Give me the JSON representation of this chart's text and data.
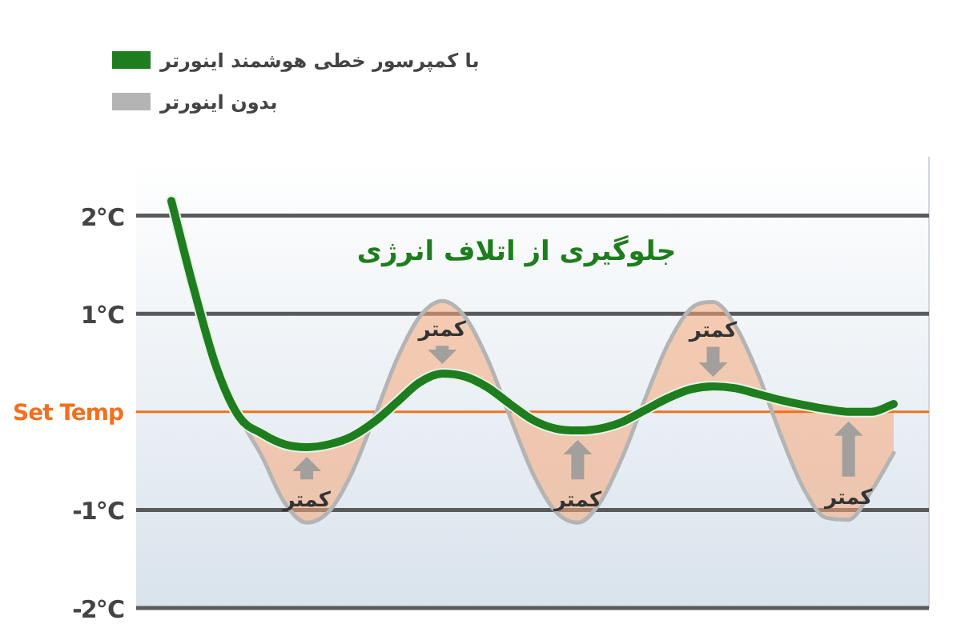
{
  "chart_data": {
    "type": "line",
    "categories": [
      null,
      null,
      null,
      null,
      null,
      null,
      null,
      null,
      null,
      null,
      null,
      null,
      null,
      null,
      null,
      null,
      null,
      null,
      null,
      null,
      null,
      null,
      null,
      null,
      null,
      null,
      null,
      null,
      null,
      null,
      null,
      null,
      null
    ],
    "series": [
      {
        "name": "با کمپرسور خطی هوشمند اینورتر",
        "color": "#1e7d1e",
        "values": [
          2.15,
          1.25,
          0.45,
          -0.05,
          -0.22,
          -0.33,
          -0.36,
          -0.33,
          -0.25,
          -0.1,
          0.1,
          0.3,
          0.39,
          0.36,
          0.25,
          0.08,
          -0.08,
          -0.17,
          -0.19,
          -0.17,
          -0.1,
          0.02,
          0.14,
          0.23,
          0.26,
          0.24,
          0.18,
          0.12,
          0.07,
          0.03,
          0.0,
          0.0,
          0.08
        ]
      },
      {
        "name": "بدون اینورتر",
        "color": "#b4b4b4",
        "values": [
          2.15,
          1.25,
          0.45,
          -0.05,
          -0.45,
          -0.92,
          -1.13,
          -1.01,
          -0.62,
          -0.05,
          0.54,
          0.97,
          1.13,
          0.97,
          0.54,
          -0.05,
          -0.62,
          -1.01,
          -1.13,
          -0.92,
          -0.45,
          0.14,
          0.69,
          1.05,
          1.12,
          0.87,
          0.38,
          -0.24,
          -0.78,
          -1.08,
          -1.1,
          -0.81,
          -0.42
        ]
      }
    ],
    "ylim": [
      -2,
      2.6
    ],
    "yticks": [
      {
        "value": 2,
        "label": "2℃"
      },
      {
        "value": 1,
        "label": "1℃"
      },
      {
        "value": -1,
        "label": "-1℃"
      },
      {
        "value": -2,
        "label": "-2℃"
      }
    ],
    "ref_lines": [
      {
        "axis": "y",
        "value": 0,
        "label": "Set Temp",
        "color": "#f07020"
      }
    ],
    "grid": "y",
    "legend": "top left",
    "tick_labels": "y",
    "annotations": [
      "جلوگیری از اتلاف انرژی",
      "کمتر",
      "کمتر",
      "کمتر",
      "کمتر",
      "کمتر"
    ]
  }
}
